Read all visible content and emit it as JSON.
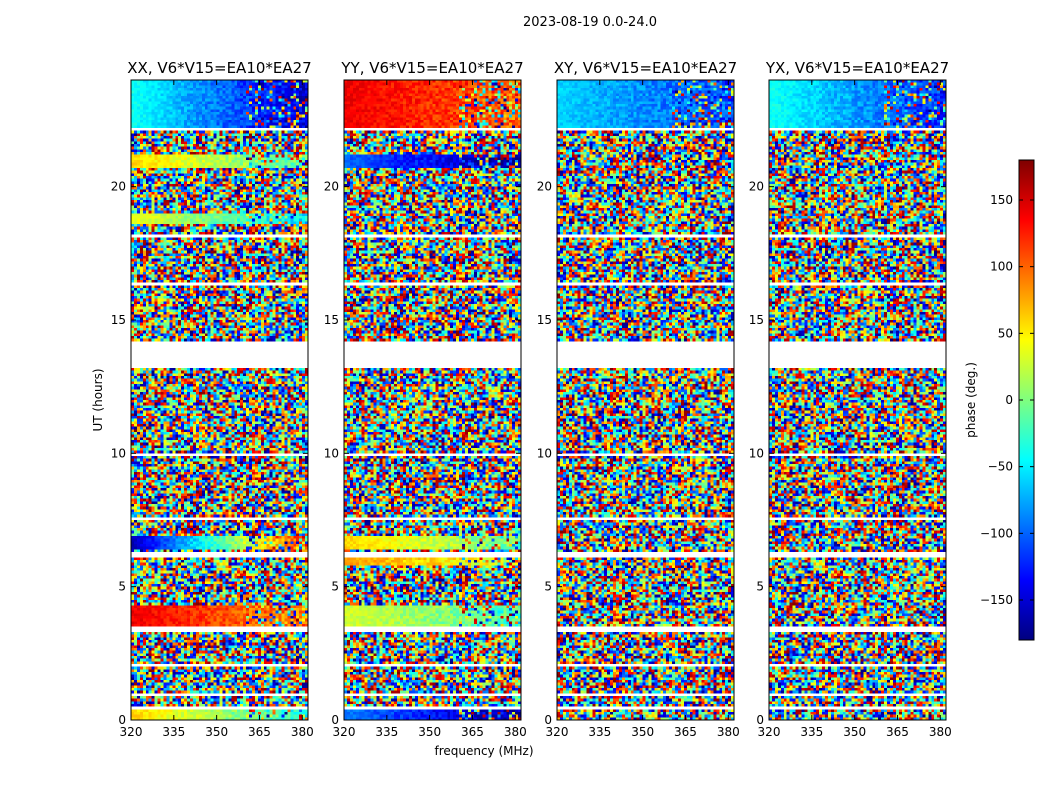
{
  "suptitle": "2023-08-19 0.0-24.0",
  "colors": {
    "colormap": [
      "#00007f",
      "#0000ff",
      "#007fff",
      "#00ffff",
      "#7fff7f",
      "#ffff00",
      "#ff7f00",
      "#ff0000",
      "#7f0000"
    ],
    "frame": "#000000"
  },
  "chart_data": {
    "type": "heatmap",
    "xlabel": "frequency (MHz)",
    "ylabel": "UT (hours)",
    "xlim": [
      320,
      382
    ],
    "ylim": [
      0,
      24
    ],
    "xticks": [
      "320",
      "335",
      "350",
      "365",
      "380"
    ],
    "yticks": [
      "0",
      "5",
      "10",
      "15",
      "20"
    ],
    "colorbar": {
      "label": "phase (deg.)",
      "range": [
        -180,
        180
      ],
      "ticks": [
        "−150",
        "−100",
        "−50",
        "0",
        "50",
        "100",
        "150"
      ],
      "tick_values": [
        -150,
        -100,
        -50,
        0,
        50,
        100,
        150
      ]
    },
    "gap_hours": [
      [
        13.2,
        14.2
      ]
    ],
    "panels": [
      {
        "title": "XX, V6*V15=EA10*EA27",
        "coherent_bands": [
          {
            "utc": [
              22.2,
              24.0
            ],
            "phase_start": -40,
            "phase_end": -150
          },
          {
            "utc": [
              20.7,
              21.2
            ],
            "phase_start": 60,
            "phase_end": -20
          },
          {
            "utc": [
              18.6,
              19.0
            ],
            "phase_start": 40,
            "phase_end": -60
          },
          {
            "utc": [
              6.4,
              6.9
            ],
            "phase_start": -160,
            "phase_end": 120
          },
          {
            "utc": [
              3.5,
              4.3
            ],
            "phase_start": 140,
            "phase_end": 80
          },
          {
            "utc": [
              0.0,
              0.5
            ],
            "phase_start": 60,
            "phase_end": -40
          }
        ]
      },
      {
        "title": "YY, V6*V15=EA10*EA27",
        "coherent_bands": [
          {
            "utc": [
              22.2,
              24.0
            ],
            "phase_start": 140,
            "phase_end": 100
          },
          {
            "utc": [
              20.7,
              21.2
            ],
            "phase_start": -100,
            "phase_end": -170
          },
          {
            "utc": [
              6.4,
              6.9
            ],
            "phase_start": 60,
            "phase_end": -10
          },
          {
            "utc": [
              5.8,
              6.1
            ],
            "phase_start": 80,
            "phase_end": 30
          },
          {
            "utc": [
              3.5,
              4.3
            ],
            "phase_start": 30,
            "phase_end": -20
          },
          {
            "utc": [
              0.0,
              0.5
            ],
            "phase_start": -90,
            "phase_end": -170
          }
        ]
      },
      {
        "title": "XY, V6*V15=EA10*EA27",
        "coherent_bands": [
          {
            "utc": [
              22.2,
              24.0
            ],
            "phase_start": -60,
            "phase_end": -110
          }
        ]
      },
      {
        "title": "YX, V6*V15=EA10*EA27",
        "coherent_bands": [
          {
            "utc": [
              22.2,
              24.0
            ],
            "phase_start": -40,
            "phase_end": -120
          }
        ]
      }
    ]
  }
}
